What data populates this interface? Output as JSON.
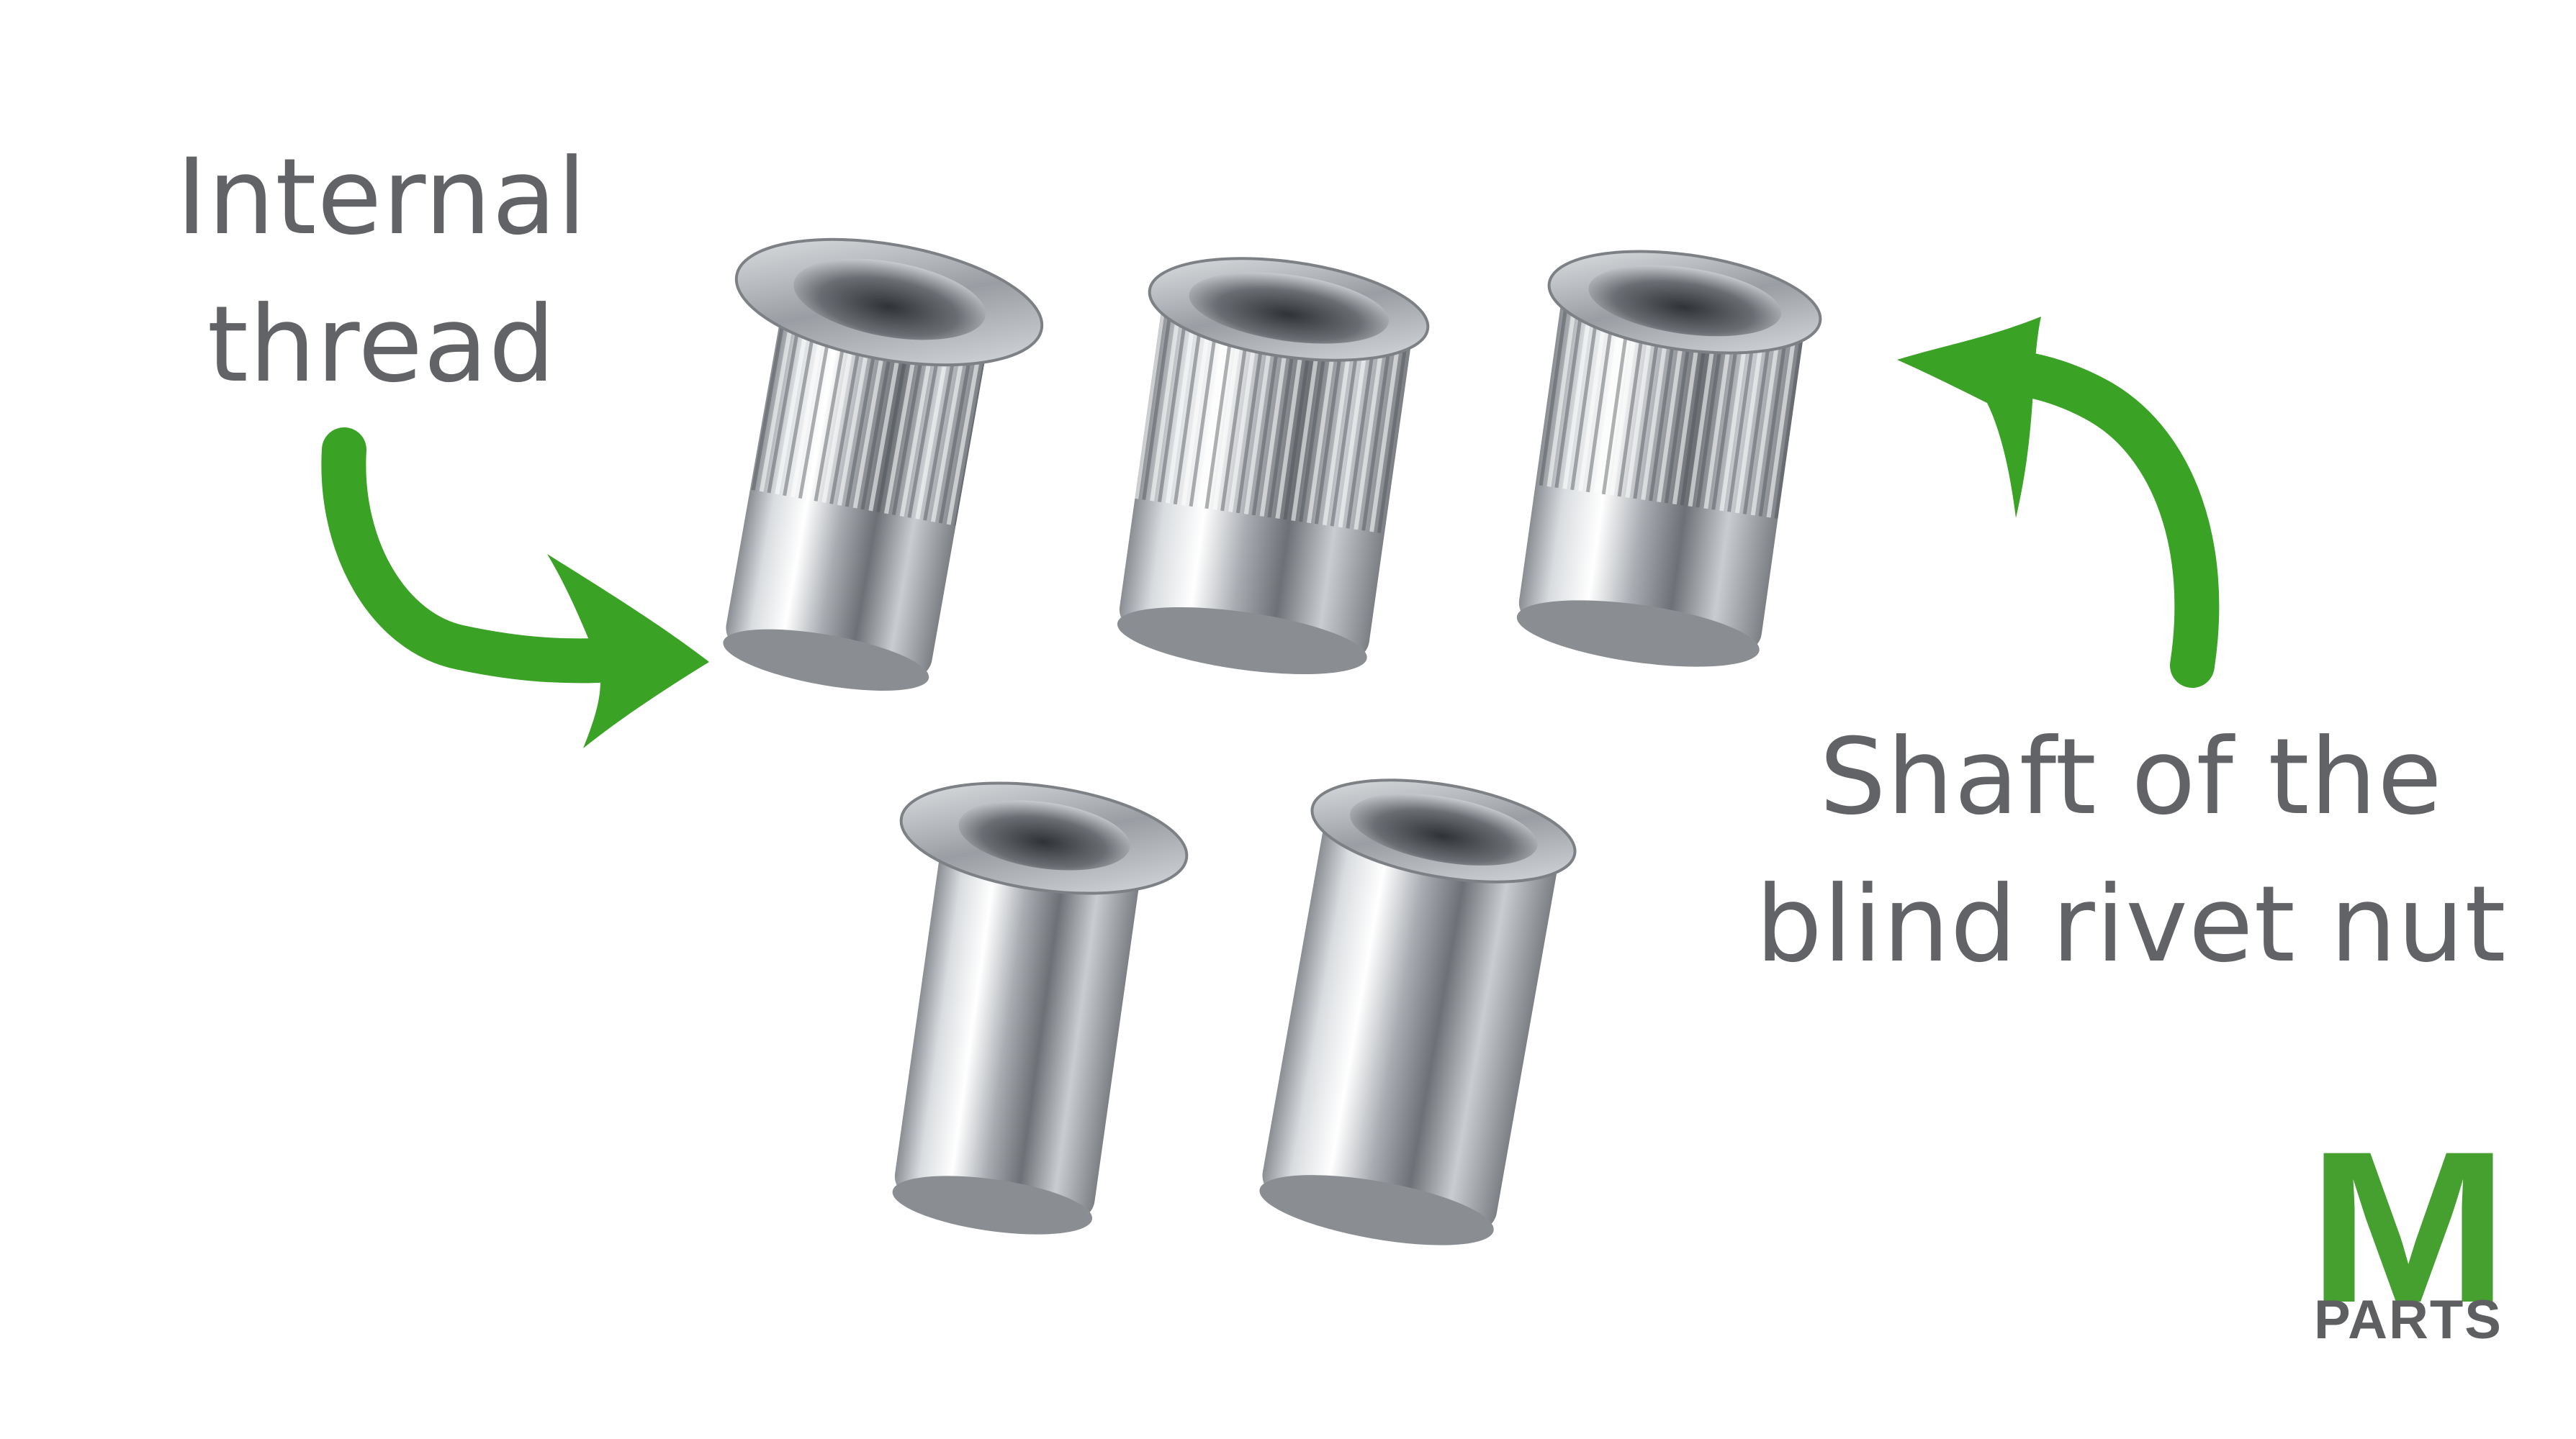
{
  "labels": {
    "internal_thread_line1": "Internal",
    "internal_thread_line2": "thread",
    "shaft_line1": "Shaft of the",
    "shaft_line2": "blind rivet nut"
  },
  "logo": {
    "letter": "M",
    "word": "PARTS"
  },
  "colors": {
    "arrow": "#3aa225",
    "label_text": "#616366",
    "logo_green": "#46a030",
    "logo_gray": "#5d5f61",
    "metal_light": "#f5f6f7",
    "metal_dark": "#6f7378"
  },
  "icons": [
    "curved-arrow-left-icon",
    "curved-arrow-right-icon"
  ]
}
